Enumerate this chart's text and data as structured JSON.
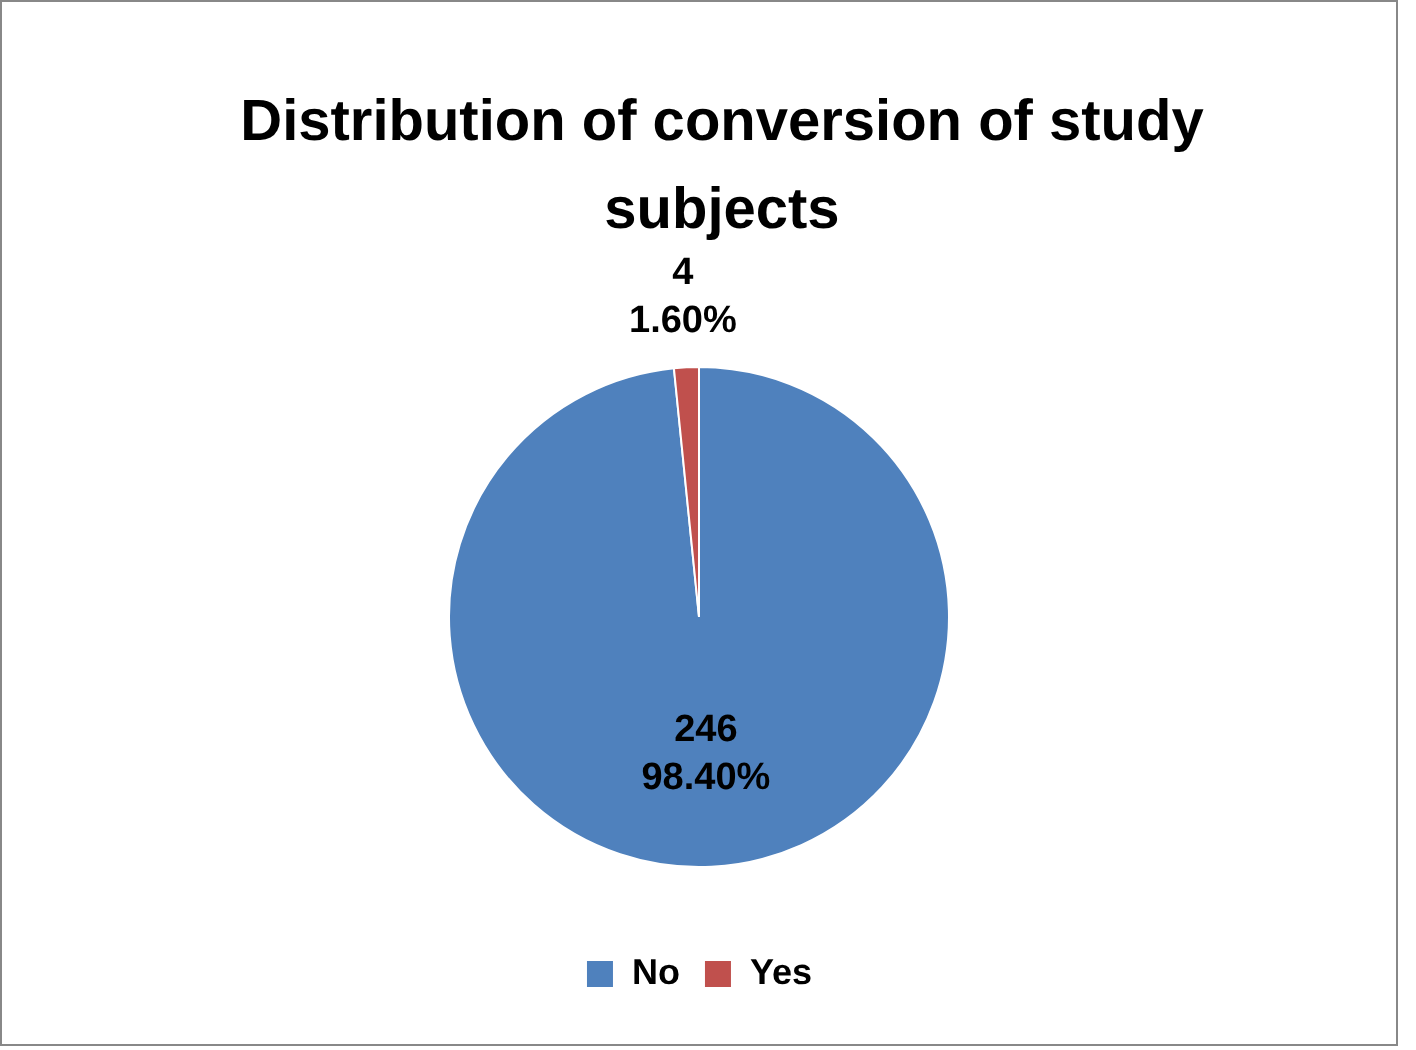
{
  "chart_data": {
    "type": "pie",
    "title": "Distribution of conversion of study subjects",
    "categories": [
      "No",
      "Yes"
    ],
    "values": [
      246,
      4
    ],
    "colors": [
      "#4f81bd",
      "#c0504d"
    ],
    "value_labels": [
      "246\n98.40%",
      "4\n1.60%"
    ],
    "legend": "bottom"
  }
}
